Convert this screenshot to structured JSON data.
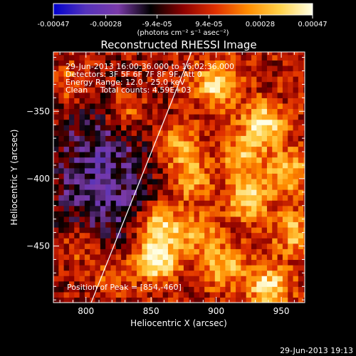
{
  "chart_data": {
    "type": "heatmap",
    "title": "Reconstructed RHESSI Image",
    "xlabel": "Heliocentric X (arcsec)",
    "ylabel": "Heliocentric Y (arcsec)",
    "xlim": [
      775,
      968
    ],
    "ylim": [
      -492,
      -306
    ],
    "x_ticks": [
      800,
      850,
      900,
      950
    ],
    "y_ticks": [
      -350,
      -400,
      -450
    ],
    "colorbar": {
      "range": [
        -0.00047,
        0.00047
      ],
      "ticks": [
        -0.00047,
        -0.00028,
        -9.4e-05,
        9.4e-05,
        0.00028,
        0.00047
      ],
      "tick_labels": [
        "-0.00047",
        "-0.00028",
        "-9.4e-05",
        "9.4e-05",
        "0.00028",
        "0.00047"
      ],
      "unit_label": "(photons cm⁻² s⁻¹ asec⁻²)",
      "colormap": [
        "#0000cc",
        "#5533bb",
        "#7a3aa8",
        "#000000",
        "#8b0000",
        "#e03000",
        "#ff8c00",
        "#ffd24a",
        "#ffffe6"
      ]
    },
    "annotations": [
      "29-Jun-2013 16:00:36.000 to 16:02:36.000",
      "Detectors: 3F 5F 6F 7F 8F 9F, Att 0",
      "Energy Range: 12.0 - 25.0 keV",
      "Clean     Total counts: 4.59E+03"
    ],
    "peak_label": "Position of Peak = [854,-460]",
    "peak_position": [
      854,
      -460
    ],
    "limb_line": [
      [
        804,
        -492
      ],
      [
        881,
        -306
      ]
    ],
    "bright_sources": [
      {
        "x": 854,
        "y": -460,
        "intensity": 1.0
      },
      {
        "x": 857,
        "y": -435,
        "intensity": 0.8
      },
      {
        "x": 900,
        "y": -330,
        "intensity": 0.75
      },
      {
        "x": 935,
        "y": -360,
        "intensity": 0.85
      },
      {
        "x": 925,
        "y": -415,
        "intensity": 0.7
      },
      {
        "x": 955,
        "y": -395,
        "intensity": 0.65
      },
      {
        "x": 870,
        "y": -375,
        "intensity": 0.55
      },
      {
        "x": 880,
        "y": -400,
        "intensity": 0.55
      },
      {
        "x": 830,
        "y": -350,
        "intensity": 0.45
      },
      {
        "x": 795,
        "y": -450,
        "intensity": 0.4
      },
      {
        "x": 940,
        "y": -480,
        "intensity": 0.75
      },
      {
        "x": 905,
        "y": -465,
        "intensity": 0.6
      },
      {
        "x": 960,
        "y": -440,
        "intensity": 0.55
      },
      {
        "x": 885,
        "y": -440,
        "intensity": 0.5
      },
      {
        "x": 820,
        "y": -470,
        "intensity": 0.4
      },
      {
        "x": 790,
        "y": -330,
        "intensity": 0.35
      },
      {
        "x": 920,
        "y": -385,
        "intensity": 0.5
      }
    ],
    "negative_region": {
      "x": 812,
      "y": -400,
      "intensity": -0.6
    }
  },
  "timestamp": "29-Jun-2013 19:13"
}
